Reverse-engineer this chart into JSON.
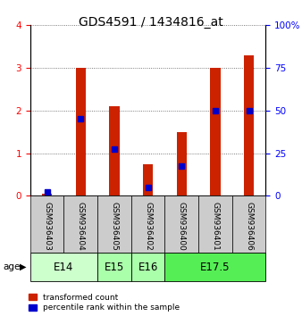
{
  "title": "GDS4591 / 1434816_at",
  "samples": [
    "GSM936403",
    "GSM936404",
    "GSM936405",
    "GSM936402",
    "GSM936400",
    "GSM936401",
    "GSM936406"
  ],
  "transformed_counts": [
    0.05,
    3.0,
    2.1,
    0.75,
    1.5,
    3.0,
    3.3
  ],
  "percentile_ranks": [
    2.5,
    45.0,
    27.5,
    5.0,
    17.5,
    50.0,
    50.0
  ],
  "age_groups": [
    {
      "label": "E14",
      "start": 0,
      "end": 2,
      "color": "#ccffcc"
    },
    {
      "label": "E15",
      "start": 2,
      "end": 3,
      "color": "#aaffaa"
    },
    {
      "label": "E16",
      "start": 3,
      "end": 4,
      "color": "#aaffaa"
    },
    {
      "label": "E17.5",
      "start": 4,
      "end": 7,
      "color": "#55ee55"
    }
  ],
  "ylim_left": [
    0,
    4
  ],
  "ylim_right": [
    0,
    100
  ],
  "yticks_left": [
    0,
    1,
    2,
    3,
    4
  ],
  "yticks_right": [
    0,
    25,
    50,
    75,
    100
  ],
  "bar_color": "#cc2200",
  "dot_color": "#0000cc",
  "bar_width": 0.3,
  "sample_bg_color": "#cccccc",
  "grid_color": "#555555",
  "title_fontsize": 10,
  "tick_fontsize": 7.5,
  "sample_fontsize": 6.5,
  "age_label_fontsize": 8.5,
  "legend_fontsize": 6.5
}
